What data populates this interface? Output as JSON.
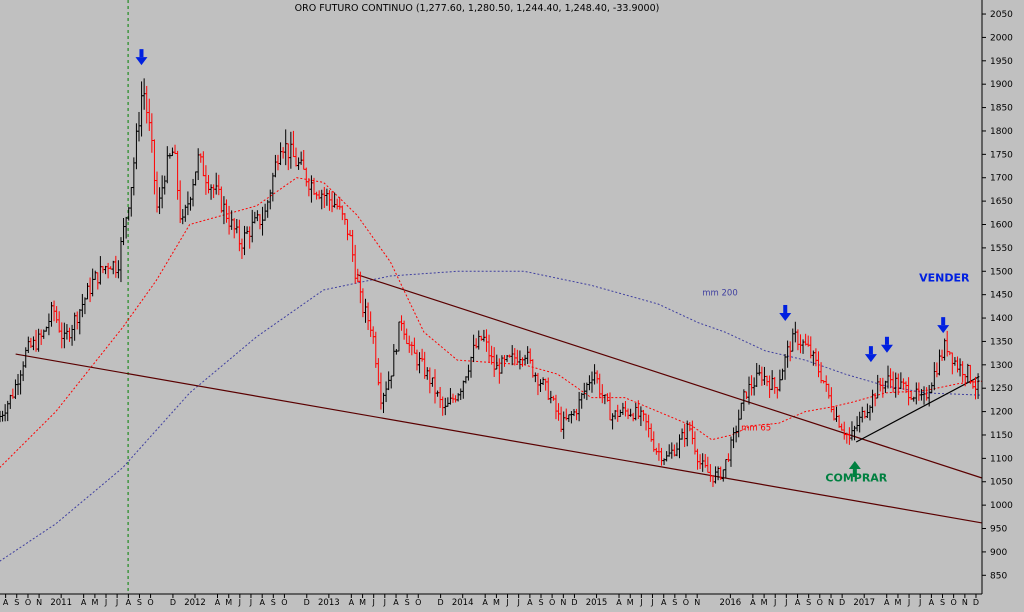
{
  "chart_data": {
    "type": "candlestick",
    "title": "ORO FUTURO CONTINUO (1,277.60, 1,280.50, 1,244.40, 1,248.40, -33.9000)",
    "ylim": [
      810,
      2080
    ],
    "y_ticks": [
      850,
      900,
      950,
      1000,
      1050,
      1100,
      1150,
      1200,
      1250,
      1300,
      1350,
      1400,
      1450,
      1500,
      1550,
      1600,
      1650,
      1700,
      1750,
      1800,
      1850,
      1900,
      1950,
      2000,
      2050
    ],
    "x_range": [
      2010.583,
      2017.92
    ],
    "x_month_labels": [
      {
        "t": 2010.625,
        "label": "A"
      },
      {
        "t": 2010.708,
        "label": "S"
      },
      {
        "t": 2010.792,
        "label": "O"
      },
      {
        "t": 2010.875,
        "label": "N"
      },
      {
        "t": 2011.04,
        "label": "2011"
      },
      {
        "t": 2011.208,
        "label": "A"
      },
      {
        "t": 2011.292,
        "label": "M"
      },
      {
        "t": 2011.375,
        "label": "J"
      },
      {
        "t": 2011.458,
        "label": "J"
      },
      {
        "t": 2011.542,
        "label": "A"
      },
      {
        "t": 2011.625,
        "label": "S"
      },
      {
        "t": 2011.708,
        "label": "O"
      },
      {
        "t": 2011.875,
        "label": "D"
      },
      {
        "t": 2012.04,
        "label": "2012"
      },
      {
        "t": 2012.208,
        "label": "A"
      },
      {
        "t": 2012.292,
        "label": "M"
      },
      {
        "t": 2012.375,
        "label": "J"
      },
      {
        "t": 2012.458,
        "label": "J"
      },
      {
        "t": 2012.542,
        "label": "A"
      },
      {
        "t": 2012.625,
        "label": "S"
      },
      {
        "t": 2012.708,
        "label": "O"
      },
      {
        "t": 2012.875,
        "label": "D"
      },
      {
        "t": 2013.04,
        "label": "2013"
      },
      {
        "t": 2013.208,
        "label": "A"
      },
      {
        "t": 2013.292,
        "label": "M"
      },
      {
        "t": 2013.375,
        "label": "J"
      },
      {
        "t": 2013.458,
        "label": "J"
      },
      {
        "t": 2013.542,
        "label": "A"
      },
      {
        "t": 2013.625,
        "label": "S"
      },
      {
        "t": 2013.708,
        "label": "O"
      },
      {
        "t": 2013.875,
        "label": "D"
      },
      {
        "t": 2014.04,
        "label": "2014"
      },
      {
        "t": 2014.208,
        "label": "A"
      },
      {
        "t": 2014.292,
        "label": "M"
      },
      {
        "t": 2014.375,
        "label": "J"
      },
      {
        "t": 2014.458,
        "label": "J"
      },
      {
        "t": 2014.542,
        "label": "A"
      },
      {
        "t": 2014.625,
        "label": "S"
      },
      {
        "t": 2014.708,
        "label": "O"
      },
      {
        "t": 2014.792,
        "label": "N"
      },
      {
        "t": 2014.875,
        "label": "D"
      },
      {
        "t": 2015.04,
        "label": "2015"
      },
      {
        "t": 2015.208,
        "label": "A"
      },
      {
        "t": 2015.292,
        "label": "M"
      },
      {
        "t": 2015.375,
        "label": "J"
      },
      {
        "t": 2015.458,
        "label": "J"
      },
      {
        "t": 2015.542,
        "label": "A"
      },
      {
        "t": 2015.625,
        "label": "S"
      },
      {
        "t": 2015.708,
        "label": "O"
      },
      {
        "t": 2015.792,
        "label": "N"
      },
      {
        "t": 2016.04,
        "label": "2016"
      },
      {
        "t": 2016.208,
        "label": "A"
      },
      {
        "t": 2016.292,
        "label": "M"
      },
      {
        "t": 2016.375,
        "label": "J"
      },
      {
        "t": 2016.458,
        "label": "J"
      },
      {
        "t": 2016.542,
        "label": "A"
      },
      {
        "t": 2016.625,
        "label": "S"
      },
      {
        "t": 2016.708,
        "label": "O"
      },
      {
        "t": 2016.792,
        "label": "N"
      },
      {
        "t": 2016.875,
        "label": "D"
      },
      {
        "t": 2017.04,
        "label": "2017"
      },
      {
        "t": 2017.208,
        "label": "A"
      },
      {
        "t": 2017.292,
        "label": "M"
      },
      {
        "t": 2017.375,
        "label": "J"
      },
      {
        "t": 2017.458,
        "label": "J"
      },
      {
        "t": 2017.542,
        "label": "A"
      },
      {
        "t": 2017.625,
        "label": "S"
      },
      {
        "t": 2017.708,
        "label": "O"
      },
      {
        "t": 2017.792,
        "label": "N"
      },
      {
        "t": 2017.875,
        "label": "D"
      }
    ],
    "price_anchors": [
      [
        2010.583,
        1180
      ],
      [
        2010.7,
        1240
      ],
      [
        2010.8,
        1330
      ],
      [
        2010.92,
        1360
      ],
      [
        2011.0,
        1420
      ],
      [
        2011.08,
        1350
      ],
      [
        2011.2,
        1420
      ],
      [
        2011.3,
        1480
      ],
      [
        2011.42,
        1520
      ],
      [
        2011.48,
        1510
      ],
      [
        2011.58,
        1680
      ],
      [
        2011.67,
        1900
      ],
      [
        2011.73,
        1780
      ],
      [
        2011.78,
        1620
      ],
      [
        2011.83,
        1710
      ],
      [
        2011.9,
        1760
      ],
      [
        2011.96,
        1590
      ],
      [
        2012.08,
        1740
      ],
      [
        2012.15,
        1700
      ],
      [
        2012.25,
        1650
      ],
      [
        2012.33,
        1600
      ],
      [
        2012.4,
        1560
      ],
      [
        2012.47,
        1590
      ],
      [
        2012.58,
        1620
      ],
      [
        2012.7,
        1780
      ],
      [
        2012.8,
        1740
      ],
      [
        2012.92,
        1690
      ],
      [
        2013.04,
        1660
      ],
      [
        2013.12,
        1640
      ],
      [
        2013.21,
        1580
      ],
      [
        2013.3,
        1430
      ],
      [
        2013.38,
        1380
      ],
      [
        2013.45,
        1230
      ],
      [
        2013.52,
        1280
      ],
      [
        2013.6,
        1400
      ],
      [
        2013.67,
        1330
      ],
      [
        2013.75,
        1300
      ],
      [
        2013.83,
        1260
      ],
      [
        2013.92,
        1200
      ],
      [
        2014.04,
        1250
      ],
      [
        2014.14,
        1330
      ],
      [
        2014.21,
        1360
      ],
      [
        2014.3,
        1290
      ],
      [
        2014.42,
        1310
      ],
      [
        2014.52,
        1330
      ],
      [
        2014.58,
        1290
      ],
      [
        2014.7,
        1240
      ],
      [
        2014.8,
        1170
      ],
      [
        2014.9,
        1200
      ],
      [
        2015.04,
        1290
      ],
      [
        2015.08,
        1250
      ],
      [
        2015.17,
        1190
      ],
      [
        2015.25,
        1200
      ],
      [
        2015.33,
        1200
      ],
      [
        2015.42,
        1180
      ],
      [
        2015.5,
        1120
      ],
      [
        2015.58,
        1100
      ],
      [
        2015.67,
        1130
      ],
      [
        2015.75,
        1170
      ],
      [
        2015.83,
        1090
      ],
      [
        2015.92,
        1060
      ],
      [
        2016.0,
        1070
      ],
      [
        2016.08,
        1140
      ],
      [
        2016.17,
        1240
      ],
      [
        2016.29,
        1280
      ],
      [
        2016.4,
        1250
      ],
      [
        2016.5,
        1340
      ],
      [
        2016.55,
        1360
      ],
      [
        2016.65,
        1330
      ],
      [
        2016.75,
        1270
      ],
      [
        2016.83,
        1200
      ],
      [
        2016.95,
        1140
      ],
      [
        2017.04,
        1190
      ],
      [
        2017.12,
        1230
      ],
      [
        2017.17,
        1255
      ],
      [
        2017.25,
        1270
      ],
      [
        2017.33,
        1255
      ],
      [
        2017.42,
        1240
      ],
      [
        2017.5,
        1220
      ],
      [
        2017.58,
        1280
      ],
      [
        2017.67,
        1345
      ],
      [
        2017.75,
        1300
      ],
      [
        2017.83,
        1285
      ],
      [
        2017.9,
        1250
      ]
    ],
    "indicators": [
      {
        "name": "mm 65",
        "color": "#ff0000",
        "points": [
          [
            2010.58,
            1080
          ],
          [
            2011.0,
            1200
          ],
          [
            2011.5,
            1380
          ],
          [
            2011.75,
            1480
          ],
          [
            2012.0,
            1600
          ],
          [
            2012.5,
            1640
          ],
          [
            2012.8,
            1700
          ],
          [
            2013.0,
            1690
          ],
          [
            2013.25,
            1620
          ],
          [
            2013.5,
            1520
          ],
          [
            2013.75,
            1370
          ],
          [
            2014.0,
            1310
          ],
          [
            2014.5,
            1300
          ],
          [
            2014.75,
            1280
          ],
          [
            2015.0,
            1230
          ],
          [
            2015.25,
            1230
          ],
          [
            2015.5,
            1200
          ],
          [
            2015.75,
            1170
          ],
          [
            2015.9,
            1140
          ],
          [
            2016.05,
            1150
          ],
          [
            2016.2,
            1170
          ],
          [
            2016.4,
            1175
          ],
          [
            2016.6,
            1200
          ],
          [
            2016.8,
            1210
          ],
          [
            2016.95,
            1220
          ],
          [
            2017.2,
            1240
          ],
          [
            2017.5,
            1245
          ],
          [
            2017.75,
            1260
          ],
          [
            2017.92,
            1265
          ]
        ]
      },
      {
        "name": "mm 200",
        "color": "#4040a0",
        "points": [
          [
            2010.58,
            880
          ],
          [
            2011.0,
            960
          ],
          [
            2011.5,
            1080
          ],
          [
            2012.0,
            1240
          ],
          [
            2012.5,
            1360
          ],
          [
            2013.0,
            1460
          ],
          [
            2013.5,
            1490
          ],
          [
            2014.0,
            1500
          ],
          [
            2014.5,
            1500
          ],
          [
            2015.0,
            1470
          ],
          [
            2015.5,
            1430
          ],
          [
            2015.8,
            1390
          ],
          [
            2016.0,
            1370
          ],
          [
            2016.3,
            1330
          ],
          [
            2016.6,
            1310
          ],
          [
            2016.9,
            1280
          ],
          [
            2017.2,
            1255
          ],
          [
            2017.5,
            1240
          ],
          [
            2017.92,
            1235
          ]
        ]
      }
    ],
    "trendlines": [
      {
        "name": "resistencia",
        "color": "#5a0000",
        "points": [
          [
            2013.25,
            1493
          ],
          [
            2017.92,
            1058
          ]
        ]
      },
      {
        "name": "soporte",
        "color": "#5a0000",
        "points": [
          [
            2010.7,
            1323
          ],
          [
            2017.92,
            962
          ]
        ]
      },
      {
        "name": "alcista",
        "color": "#000000",
        "points": [
          [
            2016.98,
            1135
          ],
          [
            2017.9,
            1275
          ]
        ]
      }
    ],
    "vertical_lines": [
      {
        "t": 2011.54,
        "color": "#008000",
        "style": "dashed"
      }
    ],
    "annotations": {
      "sell_label": {
        "text": "VENDER",
        "t": 2017.45,
        "y": 1478,
        "color": "#0020e0"
      },
      "buy_label": {
        "text": "COMPRAR",
        "t": 2016.75,
        "y": 1050,
        "color": "#008040"
      },
      "mm65_label": {
        "text": "mm 65",
        "t": 2016.12,
        "y": 1160,
        "color": "#ff0000"
      },
      "mm200_label": {
        "text": "mm 200",
        "t": 2015.83,
        "y": 1448,
        "color": "#4040a0"
      },
      "down_arrows": [
        {
          "t": 2011.64,
          "y": 1945,
          "color": "#0020e0"
        },
        {
          "t": 2016.45,
          "y": 1398,
          "color": "#0020e0"
        },
        {
          "t": 2017.09,
          "y": 1310,
          "color": "#0020e0"
        },
        {
          "t": 2017.21,
          "y": 1330,
          "color": "#0020e0"
        },
        {
          "t": 2017.63,
          "y": 1372,
          "color": "#0020e0"
        }
      ],
      "up_arrows": [
        {
          "t": 2016.97,
          "y": 1090,
          "color": "#008040"
        }
      ]
    },
    "colors": {
      "background": "#c0c0c0",
      "up_candle": "#000000",
      "down_candle": "#ff0000",
      "axis": "#000000"
    }
  }
}
